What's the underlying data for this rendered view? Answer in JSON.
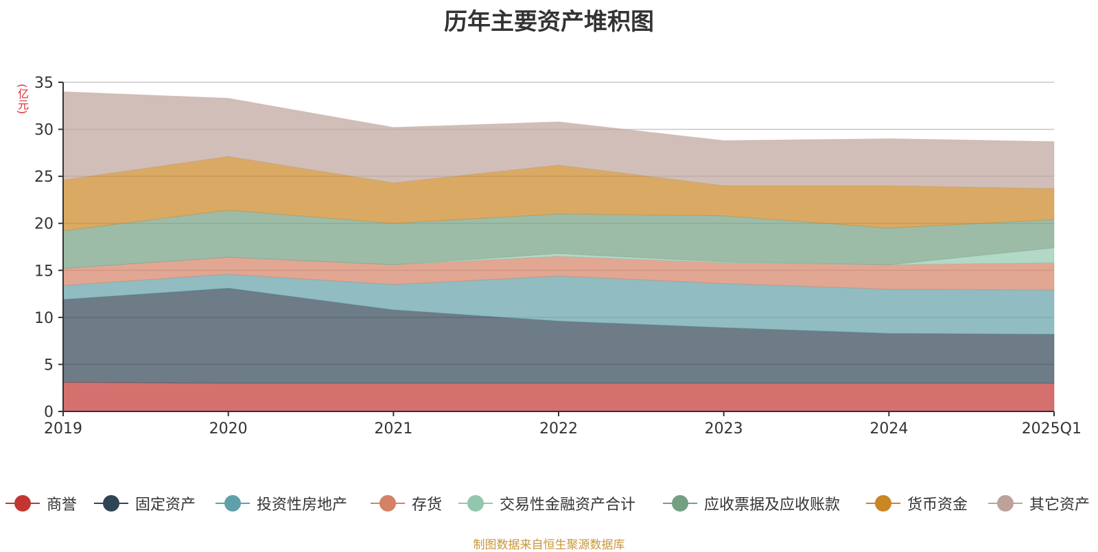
{
  "chart_data": {
    "type": "area",
    "stacked": true,
    "title": "历年主要资产堆积图",
    "unit_label": "(亿元)",
    "x": [
      "2019",
      "2020",
      "2021",
      "2022",
      "2023",
      "2024",
      "2025Q1"
    ],
    "ylim": [
      0,
      35
    ],
    "yticks": [
      0,
      5,
      10,
      15,
      20,
      25,
      30,
      35
    ],
    "grid": true,
    "legend_position": "bottom",
    "series": [
      {
        "name": "商誉",
        "color": "#c23531",
        "values": [
          3.1,
          3.0,
          3.0,
          3.0,
          3.0,
          3.0,
          3.0
        ]
      },
      {
        "name": "固定资产",
        "color": "#2f4554",
        "values": [
          8.8,
          10.1,
          7.8,
          6.6,
          5.9,
          5.3,
          5.2
        ]
      },
      {
        "name": "投资性房地产",
        "color": "#61a0a8",
        "values": [
          1.5,
          1.5,
          2.7,
          4.8,
          4.7,
          4.7,
          4.7
        ]
      },
      {
        "name": "存货",
        "color": "#d48265",
        "values": [
          1.8,
          1.8,
          2.1,
          2.1,
          2.2,
          2.6,
          2.9
        ]
      },
      {
        "name": "交易性金融资产合计",
        "color": "#91c7ae",
        "values": [
          0.0,
          0.0,
          0.0,
          0.3,
          0.1,
          0.0,
          1.6
        ]
      },
      {
        "name": "应收票据及应收账款",
        "color": "#749f83",
        "values": [
          4.0,
          5.0,
          4.4,
          4.2,
          4.9,
          3.9,
          3.0
        ]
      },
      {
        "name": "货币资金",
        "color": "#ca8622",
        "values": [
          5.4,
          5.7,
          4.3,
          5.2,
          3.2,
          4.5,
          3.3
        ]
      },
      {
        "name": "其它资产",
        "color": "#bda29a",
        "values": [
          9.4,
          6.2,
          5.9,
          4.6,
          4.8,
          5.0,
          5.0
        ]
      }
    ],
    "source_note": "制图数据来自恒生聚源数据库"
  }
}
